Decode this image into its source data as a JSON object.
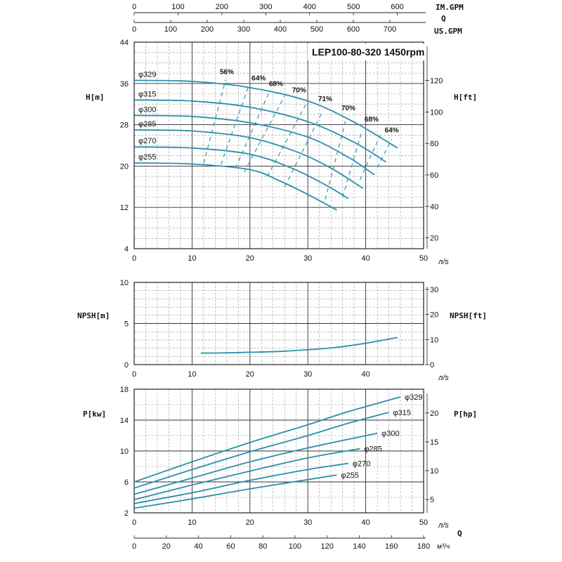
{
  "chart_data": [
    {
      "type": "line",
      "title": "LEP100-80-320 1450rpm",
      "ylabel": "H[m]",
      "ylabel_right": "H[ft]",
      "x_unit_label": "л/s",
      "xlim": [
        0,
        50
      ],
      "ylim": [
        4,
        44
      ],
      "x_ticks": [
        0,
        10,
        20,
        30,
        40,
        50
      ],
      "y_ticks": [
        4,
        12,
        20,
        28,
        36,
        44
      ],
      "y_ticks_right": [
        20,
        40,
        60,
        80,
        100,
        120
      ],
      "grid": true,
      "series": [
        {
          "name": "φ329",
          "x": [
            0,
            10,
            20,
            30,
            38,
            45.5
          ],
          "y": [
            36.6,
            36.4,
            35.2,
            32.6,
            28.5,
            23.5
          ]
        },
        {
          "name": "φ315",
          "x": [
            0,
            10,
            20,
            30,
            38,
            43.5
          ],
          "y": [
            32.8,
            32.6,
            31.4,
            28.6,
            24.6,
            20.8
          ]
        },
        {
          "name": "φ300",
          "x": [
            0,
            10,
            20,
            30,
            37,
            41.5
          ],
          "y": [
            29.8,
            29.6,
            28.4,
            25.6,
            21.7,
            18.3
          ]
        },
        {
          "name": "φ285",
          "x": [
            0,
            10,
            20,
            28,
            34,
            39.5
          ],
          "y": [
            27,
            26.8,
            25.5,
            22.8,
            19.6,
            15.7
          ]
        },
        {
          "name": "φ270",
          "x": [
            0,
            10,
            20,
            27,
            33,
            37
          ],
          "y": [
            23.7,
            23.5,
            22.3,
            19.7,
            16.4,
            13.7
          ]
        },
        {
          "name": "φ255",
          "x": [
            0,
            10,
            20,
            25,
            30,
            35
          ],
          "y": [
            20.6,
            20.4,
            19.3,
            17.2,
            14.5,
            11.5
          ]
        }
      ],
      "efficiency_labels": [
        {
          "text": "56%",
          "x": 16,
          "y": 37.8
        },
        {
          "text": "64%",
          "x": 21.5,
          "y": 36.6
        },
        {
          "text": "68%",
          "x": 24.5,
          "y": 35.5
        },
        {
          "text": "70%",
          "x": 28.5,
          "y": 34.3
        },
        {
          "text": "71%",
          "x": 33,
          "y": 32.6
        },
        {
          "text": "70%",
          "x": 37,
          "y": 30.8
        },
        {
          "text": "68%",
          "x": 41,
          "y": 28.6
        },
        {
          "text": "64%",
          "x": 44.5,
          "y": 26.5
        }
      ],
      "efficiency_contours": [
        {
          "x": [
            12,
            15.8
          ],
          "y": [
            20.5,
            36.7
          ]
        },
        {
          "x": [
            15,
            19.7
          ],
          "y": [
            20.3,
            35.3
          ]
        },
        {
          "x": [
            17.5,
            23.3
          ],
          "y": [
            19.6,
            34.3
          ]
        },
        {
          "x": [
            19,
            26
          ],
          "y": [
            18.8,
            33.6
          ]
        },
        {
          "x": [
            23,
            29.7
          ],
          "y": [
            18,
            32
          ]
        },
        {
          "x": [
            26,
            32.5
          ],
          "y": [
            16,
            30.5
          ]
        },
        {
          "x": [
            33,
            36.5
          ],
          "y": [
            13.5,
            28.7
          ]
        },
        {
          "x": [
            36,
            39.3
          ],
          "y": [
            14,
            26.6
          ]
        },
        {
          "x": [
            39,
            42.5
          ],
          "y": [
            17.3,
            26
          ]
        },
        {
          "x": [
            42,
            44.5
          ],
          "y": [
            19.7,
            25.2
          ]
        }
      ]
    },
    {
      "type": "line",
      "ylabel": "NPSH[m]",
      "ylabel_right": "NPSH[ft]",
      "x_unit_label": "л/s",
      "xlim": [
        0,
        50
      ],
      "ylim": [
        0,
        10
      ],
      "x_ticks": [
        0,
        10,
        20,
        30,
        40
      ],
      "y_ticks": [
        0,
        5,
        10
      ],
      "y_ticks_right": [
        0,
        10,
        20,
        30
      ],
      "grid": true,
      "series": [
        {
          "name": "",
          "x": [
            11.5,
            15,
            20,
            25,
            30,
            35,
            40,
            45.5
          ],
          "y": [
            1.4,
            1.42,
            1.5,
            1.6,
            1.8,
            2.1,
            2.6,
            3.3
          ]
        }
      ]
    },
    {
      "type": "line",
      "ylabel": "P[kw]",
      "ylabel_right": "P[hp]",
      "x_unit_label": "л/s",
      "xlim": [
        0,
        50
      ],
      "ylim": [
        2,
        18
      ],
      "x_ticks": [
        0,
        10,
        20,
        30,
        40,
        50
      ],
      "y_ticks": [
        2,
        6,
        10,
        14,
        18
      ],
      "y_ticks_right": [
        5,
        10,
        15,
        20
      ],
      "grid": true,
      "series": [
        {
          "name": "φ329",
          "x": [
            0,
            10,
            20,
            30,
            37,
            46
          ],
          "y": [
            6,
            8.6,
            11.1,
            13.4,
            15.1,
            17
          ]
        },
        {
          "name": "φ315",
          "x": [
            0,
            10,
            20,
            30,
            37,
            44
          ],
          "y": [
            5.2,
            7.6,
            9.9,
            12,
            13.6,
            15
          ]
        },
        {
          "name": "φ300",
          "x": [
            0,
            10,
            20,
            30,
            42
          ],
          "y": [
            4.4,
            6.5,
            8.6,
            10.4,
            12.3
          ]
        },
        {
          "name": "φ285",
          "x": [
            0,
            10,
            20,
            30,
            39
          ],
          "y": [
            3.7,
            5.6,
            7.4,
            9.1,
            10.3
          ]
        },
        {
          "name": "φ270",
          "x": [
            0,
            10,
            20,
            30,
            37
          ],
          "y": [
            3.2,
            4.6,
            6.2,
            7.6,
            8.4
          ]
        },
        {
          "name": "φ255",
          "x": [
            0,
            10,
            20,
            30,
            35
          ],
          "y": [
            2.6,
            3.8,
            5.1,
            6.3,
            6.9
          ]
        }
      ]
    }
  ],
  "axes": {
    "top_im_label": "IM.GPM",
    "top_im_ticks": [
      "0",
      "100",
      "200",
      "300",
      "400",
      "500",
      "600"
    ],
    "q_label": "Q",
    "top_us_label": "US.GPM",
    "top_us_ticks": [
      "0",
      "100",
      "200",
      "300",
      "400",
      "500",
      "600",
      "700"
    ],
    "bottom_q_label": "Q",
    "bottom_m3_label": "м³/ч",
    "bottom_m3_ticks": [
      "0",
      "20",
      "40",
      "60",
      "80",
      "100",
      "120",
      "140",
      "160",
      "180"
    ]
  },
  "colors": {
    "curve": "#2a8fab",
    "dash": "#3b9ec1",
    "grid_minor": "#9e9e9e",
    "grid_major": "#333333",
    "frame": "#222222"
  }
}
